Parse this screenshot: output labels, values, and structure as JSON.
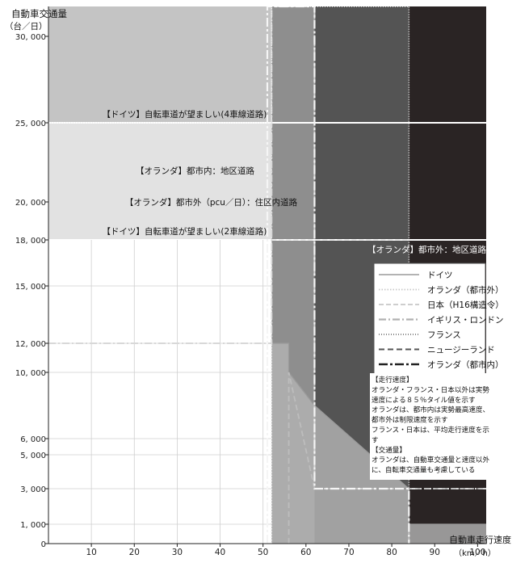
{
  "chart_data": {
    "type": "area",
    "title": "",
    "ylabel": "自動車交通量",
    "ylabel_unit": "（台／日）",
    "xlabel": "自動車走行速度",
    "xlabel_unit": "（km／h）",
    "xlim": [
      0,
      102
    ],
    "x_ticks": [
      10,
      20,
      30,
      40,
      50,
      60,
      70,
      80,
      90,
      100
    ],
    "y_ticks": [
      0,
      1000,
      3000,
      5000,
      6000,
      10000,
      12000,
      15000,
      18000,
      20000,
      25000,
      30000
    ],
    "y_tick_labels": [
      "0",
      "1, 000",
      "3, 000",
      "5, 000",
      "6, 000",
      "10, 000",
      "12, 000",
      "15, 000",
      "18, 000",
      "20, 000",
      "25, 000",
      "30, 000"
    ],
    "grid": true,
    "y_scale": "piecewise",
    "zones": [
      {
        "x0": 0,
        "x1": 52,
        "y0": 25000,
        "y1": 31500,
        "color": "#c4c4c4",
        "label": "【ドイツ】自転車道が望ましい(4車線道路)"
      },
      {
        "x0": 0,
        "x1": 52,
        "y0": 18000,
        "y1": 25000,
        "color": "#e2e2e2",
        "label": "【ドイツ】自転車道が望ましい(2車線道路)"
      },
      {
        "x0": 52,
        "x1": 62,
        "y0": 0,
        "y1": 31500,
        "color": "#8e8e8e"
      },
      {
        "x0": 62,
        "x1": 84,
        "y0": 0,
        "y1": 31500,
        "color": "#545454"
      },
      {
        "x0": 84,
        "x1": 102,
        "y0": 0,
        "y1": 31500,
        "color": "#2a2424"
      }
    ],
    "zone_labels": [
      {
        "text": "【オランダ】都市内：地区道路",
        "x": 48,
        "y": 22000
      },
      {
        "text": "【オランダ】都市外（pcu／日）：住区内道路",
        "x": 58,
        "y": 20000
      },
      {
        "text": "【オランダ】都市外：地区道路",
        "x": 102,
        "y": 17400
      }
    ],
    "series": [
      {
        "name": "ドイツ",
        "style": "solid-gray",
        "x": [
          52,
          56,
          56,
          62,
          84,
          84,
          102
        ],
        "y": [
          12000,
          12000,
          10000,
          8000,
          3000,
          1000,
          1000
        ]
      },
      {
        "name": "オランダ（都市外）",
        "style": "dotted-light",
        "x": [
          52,
          52
        ],
        "y": [
          0,
          31500
        ]
      },
      {
        "name": "日本（H16構造令）",
        "style": "dash-light",
        "x": [
          52,
          84
        ],
        "y": [
          18000,
          18000
        ]
      },
      {
        "name": "イギリス・ロンドン",
        "style": "dashdot-gray",
        "x": [
          0,
          52,
          52,
          62,
          62,
          102
        ],
        "y": [
          12000,
          12000,
          31500,
          31500,
          3000,
          3000
        ]
      },
      {
        "name": "フランス",
        "style": "dotted",
        "x": [
          0,
          52,
          52,
          84,
          84
        ],
        "y": [
          25000,
          25000,
          31500,
          31500,
          0
        ]
      },
      {
        "name": "ニュージーランド",
        "style": "dashed",
        "x": [
          56,
          56,
          62,
          102
        ],
        "y": [
          0,
          10000,
          3000,
          3000
        ]
      },
      {
        "name": "オランダ（都市内）",
        "style": "dashdot-dark",
        "x": [
          51,
          51,
          62,
          62,
          84,
          84
        ],
        "y": [
          0,
          31500,
          31500,
          3000,
          3000,
          0
        ]
      }
    ],
    "annotation": {
      "lines": [
        "【走行速度】",
        "オランダ・フランス・日本以外は実勢",
        "速度による８５％タイル値を示す",
        "オランダは、都市内は実勢最高速度、",
        "都市外は制限速度を示す",
        "フランス・日本は、平均走行速度を示",
        "す",
        "【交通量】",
        "オランダは、自動車交通量と速度以外",
        "に、自転車交通量も考慮している"
      ]
    },
    "legend_position": "right"
  }
}
